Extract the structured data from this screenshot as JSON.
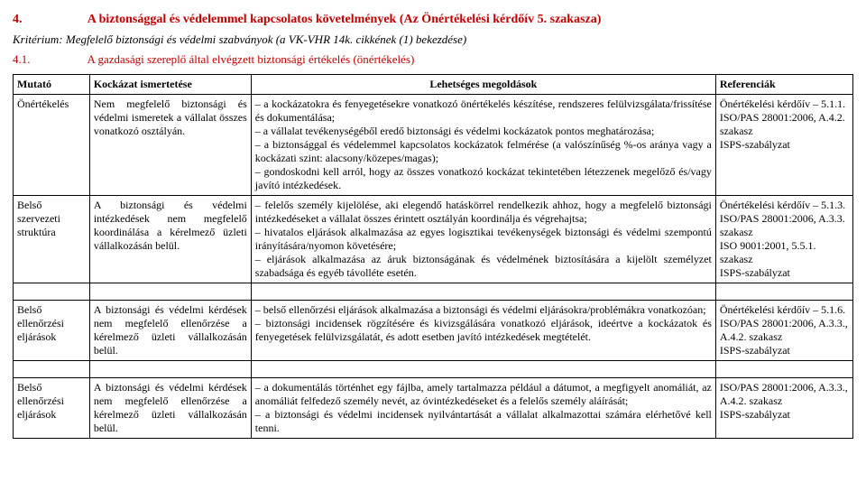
{
  "heading": {
    "num": "4.",
    "text": "A biztonsággal és védelemmel kapcsolatos követelmények (Az Önértékelési kérdőív 5. szakasza)"
  },
  "criterion": "Kritérium: Megfelelő biztonsági és védelmi szabványok (a VK-VHR 14k. cikkének (1) bekezdése)",
  "subheading": {
    "num": "4.1.",
    "text": "A gazdasági szereplő által elvégzett biztonsági értékelés (önértékelés)"
  },
  "headers": {
    "c1": "Mutató",
    "c2": "Kockázat ismertetése",
    "c3": "Lehetséges megoldások",
    "c4": "Referenciák"
  },
  "rows": [
    {
      "c1": "Önértékelés",
      "c2": "Nem megfelelő biztonsági és védelmi ismeretek a vállalat összes vonatkozó osztályán.",
      "c3": "– a kockázatokra és fenyegetésekre vonatkozó önértékelés készítése, rendszeres felülvizsgálata/frissítése és dokumentálása;\n– a vállalat tevékenységéből eredő biztonsági és védelmi kockázatok pontos meghatározása;\n– a biztonsággal és védelemmel kapcsolatos kockázatok felmérése (a valószínűség %-os aránya vagy a kockázati szint: alacsony/közepes/magas);\n– gondoskodni kell arról, hogy az összes vonatkozó kockázat tekintetében létezzenek megelőző és/vagy javító intézkedések.",
      "c4": "Önértékelési kérdőív – 5.1.1.\nISO/PAS 28001:2006, A.4.2. szakasz\nISPS-szabályzat"
    },
    {
      "c1": "Belső szervezeti struktúra",
      "c2": "A biztonsági és védelmi intézkedések nem megfelelő koordinálása a kérelmező üzleti vállalkozásán belül.",
      "c3": "– felelős személy kijelölése, aki elegendő hatáskörrel rendelkezik ahhoz, hogy a megfelelő biztonsági intézkedéseket a vállalat összes érintett osztályán koordinálja és végrehajtsa;\n– hivatalos eljárások alkalmazása az egyes logisztikai tevékenységek biztonsági és védelmi szempontú irányítására/nyomon követésére;\n– eljárások alkalmazása az áruk biztonságának és védelmének biztosítására a kijelölt személyzet szabadsága és egyéb távolléte esetén.",
      "c4": "Önértékelési kérdőív – 5.1.3.\nISO/PAS 28001:2006, A.3.3. szakasz\nISO 9001:2001, 5.5.1. szakasz\nISPS-szabályzat"
    },
    {
      "c1": "Belső ellenőrzési eljárások",
      "c2": "A biztonsági és védelmi kérdések nem megfelelő ellenőrzése a kérelmező üzleti vállalkozásán belül.",
      "c3": "– belső ellenőrzési eljárások alkalmazása a biztonsági és védelmi eljárásokra/problémákra vonatkozóan;\n– biztonsági incidensek rögzítésére és kivizsgálására vonatkozó eljárások, ideértve a kockázatok és fenyegetések felülvizsgálatát, és adott esetben javító intézkedések megtételét.",
      "c4": "Önértékelési kérdőív – 5.1.6.\nISO/PAS 28001:2006, A.3.3., A.4.2. szakasz\nISPS-szabályzat"
    },
    {
      "c1": "Belső ellenőrzési eljárások",
      "c2": "A biztonsági és védelmi kérdések nem megfelelő ellenőrzése a kérelmező üzleti vállalkozásán belül.",
      "c3": "– a dokumentálás történhet egy fájlba, amely tartalmazza például a dátumot, a megfigyelt anomáliát, az anomáliát felfedező személy nevét, az óvintézkedéseket és a felelős személy aláírását;\n– a biztonsági és védelmi incidensek nyilvántartását a vállalat alkalmazottai számára elérhetővé kell tenni.",
      "c4": "ISO/PAS 28001:2006, A.3.3., A.4.2. szakasz\nISPS-szabályzat"
    }
  ]
}
